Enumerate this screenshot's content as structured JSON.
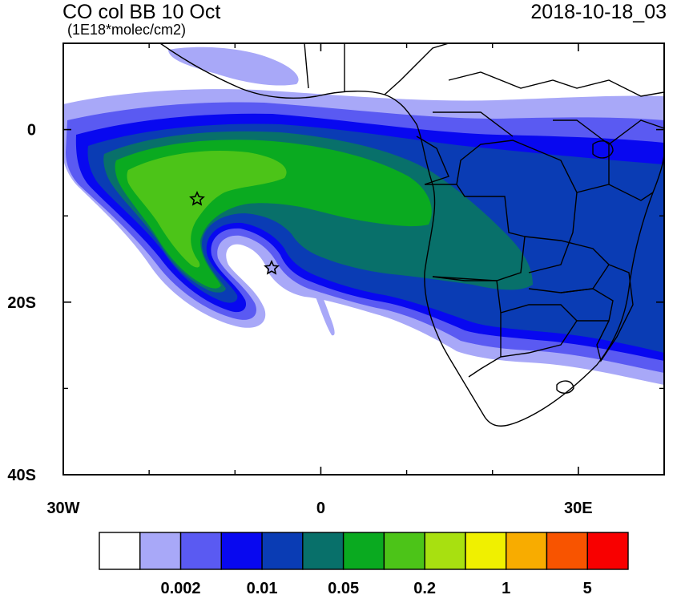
{
  "title": "CO col BB 10 Oct",
  "units": "(1E18*molec/cm2)",
  "timestamp": "2018-10-18_03",
  "axes": {
    "lon_range": [
      -30,
      40
    ],
    "lat_range": [
      -40,
      10
    ],
    "x_ticks": [
      {
        "value": -30,
        "label": "30W"
      },
      {
        "value": 0,
        "label": "0"
      },
      {
        "value": 30,
        "label": "30E"
      }
    ],
    "y_ticks": [
      {
        "value": 0,
        "label": "0"
      },
      {
        "value": -20,
        "label": "20S"
      },
      {
        "value": -40,
        "label": "40S"
      }
    ]
  },
  "markers": [
    {
      "type": "star",
      "lon": -14.3,
      "lat": -8.0
    },
    {
      "type": "star",
      "lon": -5.7,
      "lat": -16.0
    }
  ],
  "colorbar": {
    "colors": [
      "#ffffff",
      "#a8a8f8",
      "#5a5af2",
      "#0808f0",
      "#0a3cb4",
      "#08706a",
      "#0aaa20",
      "#4cc418",
      "#a8e010",
      "#f0f000",
      "#f8ac00",
      "#f85400",
      "#f80000"
    ],
    "labels": [
      {
        "boundary": 2,
        "text": "0.002"
      },
      {
        "boundary": 4,
        "text": "0.01"
      },
      {
        "boundary": 6,
        "text": "0.05"
      },
      {
        "boundary": 8,
        "text": "0.2"
      },
      {
        "boundary": 10,
        "text": "1"
      },
      {
        "boundary": 12,
        "text": "5"
      }
    ]
  }
}
